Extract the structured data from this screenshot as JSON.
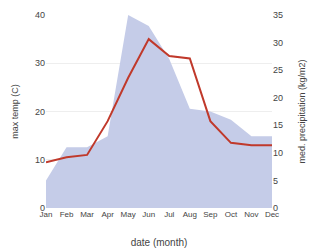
{
  "chart_data": {
    "type": "line",
    "categories": [
      "Jan",
      "Feb",
      "Mar",
      "Apr",
      "May",
      "Jun",
      "Jul",
      "Aug",
      "Sep",
      "Oct",
      "Nov",
      "Dec"
    ],
    "series": [
      {
        "type": "line",
        "color": "#c0392b",
        "values": [
          9.5,
          10.5,
          11.0,
          18.0,
          27.0,
          35.0,
          31.5,
          31.0,
          18.0,
          13.5,
          13.0,
          13.0
        ]
      },
      {
        "type": "area",
        "axis": "y2",
        "color": "#c5cce8",
        "values": [
          5.0,
          11.0,
          11.0,
          13.0,
          35.0,
          33.0,
          27.0,
          18.0,
          17.5,
          16.0,
          13.0,
          13.0
        ]
      }
    ],
    "xlabel": "date (month)",
    "ylabel": "max temp (C)",
    "y2label": "med. precipitation (kg/m2)",
    "ylim": [
      0,
      40
    ],
    "yticks": [
      0,
      10,
      20,
      30,
      40
    ],
    "y2lim": [
      0,
      35
    ],
    "y2ticks": [
      0,
      5,
      10,
      15,
      20,
      25,
      30,
      35
    ],
    "grid": true
  }
}
